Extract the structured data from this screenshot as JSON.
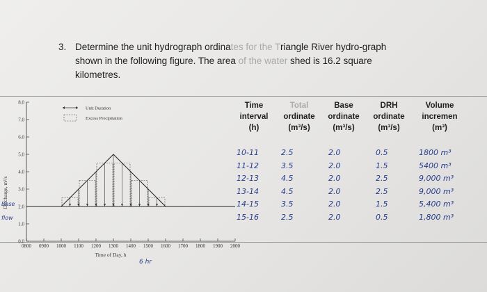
{
  "question": {
    "number": "3.",
    "line1_a": "Determine the unit hydrograph ordina",
    "line1_faded": "tes for the T",
    "line1_b": "riangle River hydro-graph",
    "line2_a": "shown in the following figure. The area",
    "line2_faded": " of the water",
    "line2_b": " shed is 16.2 square",
    "line3": "kilometres."
  },
  "chart_data": {
    "type": "bar",
    "xlabel": "Time of Day, h",
    "ylabel": "Discharge, m³/s",
    "ylim": [
      0,
      8
    ],
    "yticks": [
      "0.0",
      "1.0",
      "2.0",
      "3.0",
      "4.0",
      "5.0",
      "6.0",
      "7.0",
      "8.0"
    ],
    "xticks": [
      "0800",
      "0900",
      "1000",
      "1100",
      "1200",
      "1300",
      "1400",
      "1500",
      "1600",
      "1700",
      "1800",
      "1900",
      "2000"
    ],
    "x_hours": [
      8,
      9,
      10,
      11,
      12,
      13,
      14,
      15,
      16,
      17,
      18,
      19,
      20
    ],
    "baseflow": 2.0,
    "hydrograph": {
      "x": [
        10,
        13,
        16
      ],
      "y": [
        2.0,
        5.0,
        2.0
      ]
    },
    "unit_duration_h": 1,
    "intervals": [
      {
        "start": 10,
        "end": 11,
        "total": 2.5
      },
      {
        "start": 11,
        "end": 12,
        "total": 3.5
      },
      {
        "start": 12,
        "end": 13,
        "total": 4.5
      },
      {
        "start": 13,
        "end": 14,
        "total": 4.5
      },
      {
        "start": 14,
        "end": 15,
        "total": 3.5
      },
      {
        "start": 15,
        "end": 16,
        "total": 2.5
      }
    ],
    "legend": [
      {
        "label": "Unit Duration",
        "symbol": "double-arrow"
      },
      {
        "label": "Excess Precipitation",
        "symbol": "dashed-box"
      }
    ]
  },
  "annotations": {
    "y_base": "Base",
    "y_flow": "flow",
    "time_unit": "6 hr"
  },
  "table": {
    "headers": [
      [
        "Time",
        "interval",
        "(h)"
      ],
      [
        "Total",
        "ordinate",
        "(m³/s)"
      ],
      [
        "Base",
        "ordinate",
        "(m³/s)"
      ],
      [
        "DRH",
        "ordinate",
        "(m³/s)"
      ],
      [
        "Volume",
        "incremen",
        "(m³)"
      ]
    ],
    "rows": [
      [
        "10-11",
        "2.5",
        "2.0",
        "0.5",
        "1800 m³"
      ],
      [
        "11-12",
        "3.5",
        "2.0",
        "1.5",
        "5400 m³"
      ],
      [
        "12-13",
        "4.5",
        "2.0",
        "2.5",
        "9,000 m³"
      ],
      [
        "13-14",
        "4.5",
        "2.0",
        "2.5",
        "9,000 m³"
      ],
      [
        "14-15",
        "3.5",
        "2.0",
        "1.5",
        "5,400 m³"
      ],
      [
        "15-16",
        "2.5",
        "2.0",
        "0.5",
        "1,800 m³"
      ]
    ]
  },
  "colors": {
    "ink": "#243b8c",
    "print": "#1e1e1e",
    "paper": "#e9e8e6"
  }
}
